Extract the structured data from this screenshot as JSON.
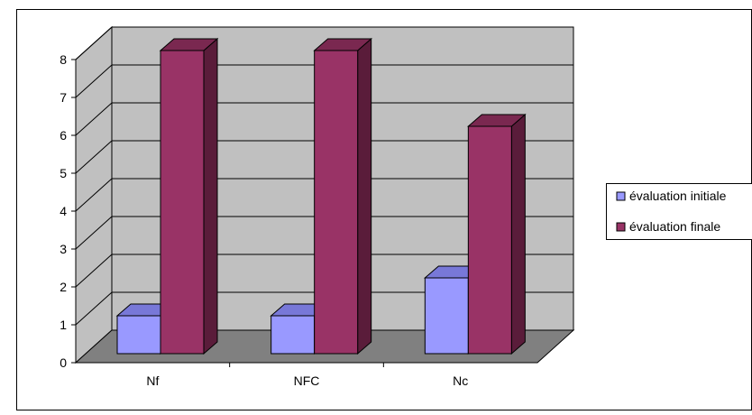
{
  "chart_data": {
    "type": "bar",
    "title": "",
    "xlabel": "",
    "ylabel": "",
    "categories": [
      "Nf",
      "NFC",
      "Nc"
    ],
    "series": [
      {
        "name": "évaluation initiale",
        "values": [
          1,
          1,
          2
        ],
        "color": "#9999FF"
      },
      {
        "name": "évaluation finale",
        "values": [
          8,
          8,
          6
        ],
        "color": "#993366"
      }
    ],
    "ylim": [
      0,
      8
    ],
    "yticks": [
      "0",
      "1",
      "2",
      "3",
      "4",
      "5",
      "6",
      "7",
      "8"
    ],
    "grid": true,
    "three_d": true,
    "legend_position": "right",
    "colors": {
      "wall": "#C0C0C0",
      "floor": "#808080",
      "gridline": "#000000",
      "initiale_top": "#7878D8",
      "initiale_side": "#6464B8",
      "finale_top": "#7A2850",
      "finale_side": "#5A1C3A"
    }
  }
}
